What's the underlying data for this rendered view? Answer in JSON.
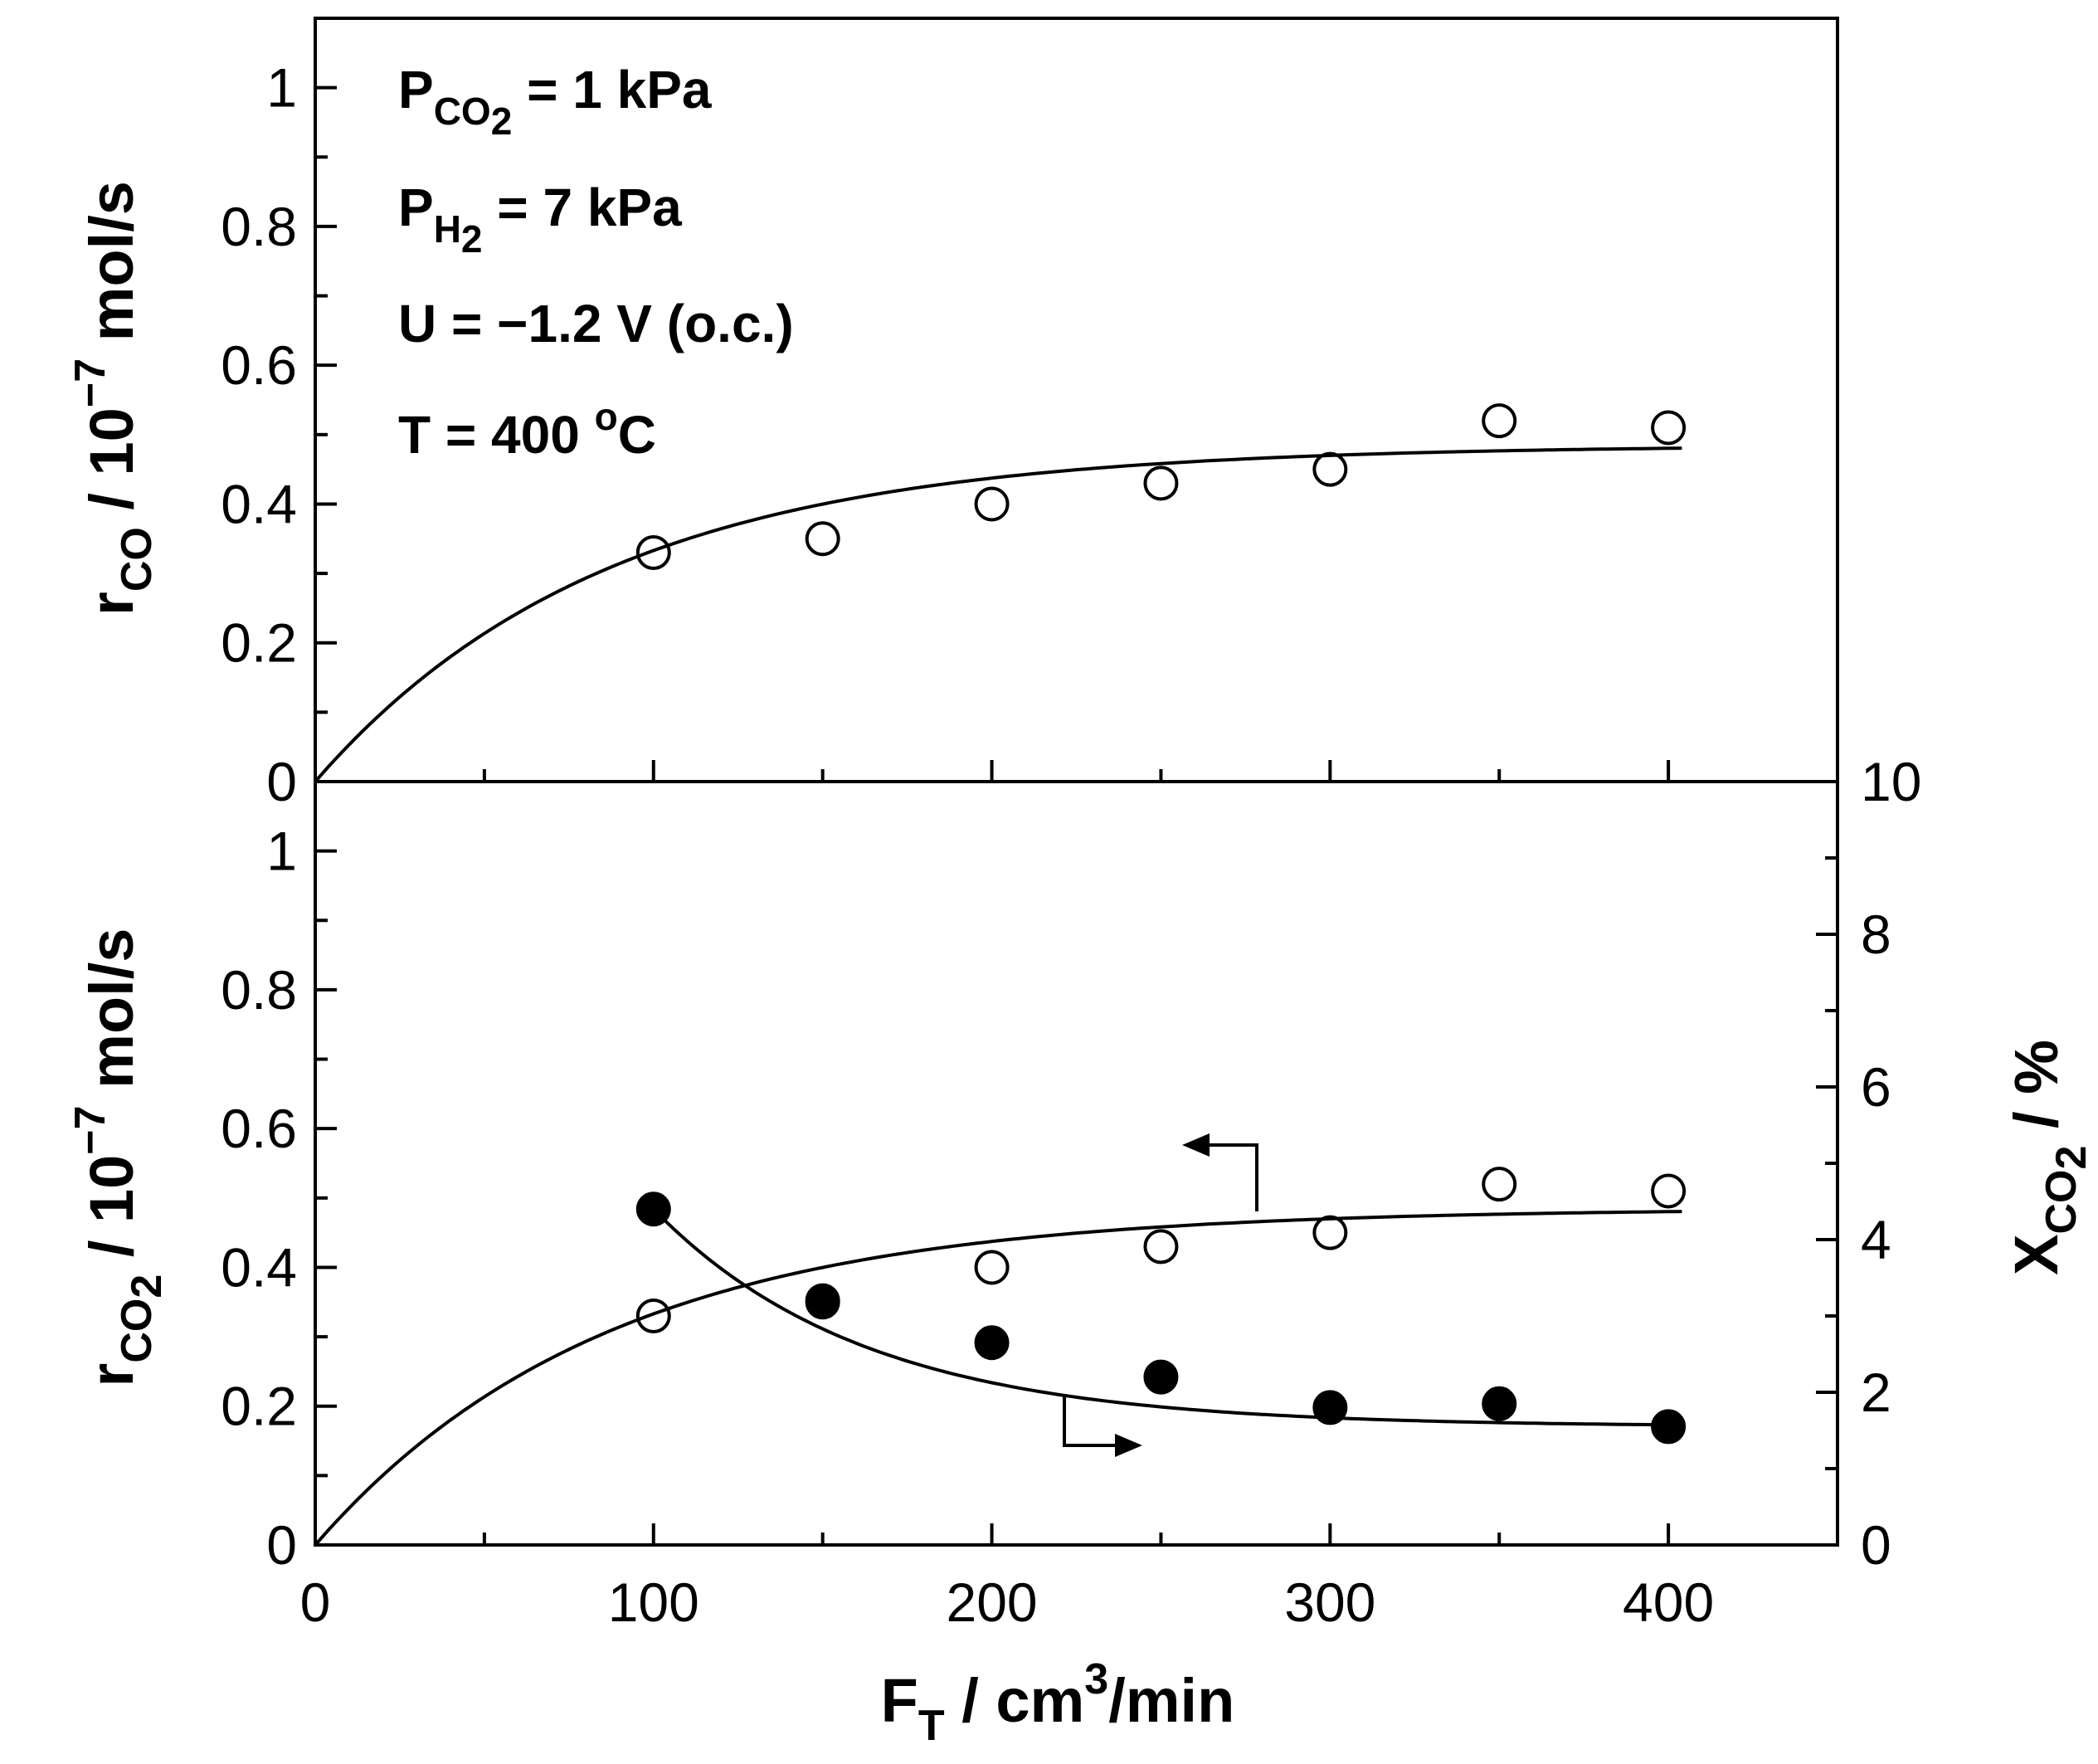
{
  "chart_data": [
    {
      "type": "scatter",
      "panel": "top",
      "x": [
        100,
        150,
        200,
        250,
        300,
        350,
        400
      ],
      "series": [
        {
          "name": "r_CO measured",
          "marker": "open-circle",
          "axis": "left",
          "values": [
            0.33,
            0.35,
            0.4,
            0.43,
            0.45,
            0.52,
            0.51
          ]
        },
        {
          "name": "r_CO fit",
          "style": "line",
          "axis": "left",
          "asymptote": 0.485,
          "rate": 0.0116
        }
      ],
      "xlim": [
        0,
        450
      ],
      "ylim": [
        0,
        1.1
      ],
      "yticks": [
        "0",
        "0.2",
        "0.4",
        "0.6",
        "0.8",
        "1"
      ],
      "ylabel": {
        "main": "r",
        "sub": "CO",
        "rest": " / 10",
        "sup": "−7",
        "tail": " mol/s"
      },
      "annotations": [
        {
          "main": "P",
          "sub": "CO",
          "sub2": "2",
          "rest": " = 1 kPa"
        },
        {
          "main": "P",
          "sub": "H",
          "sub2": "2",
          "rest": " = 7 kPa"
        },
        {
          "main": "U = −1.2 V (o.c.)"
        },
        {
          "main": "T = 400 ",
          "sup": "o",
          "rest": "C"
        }
      ]
    },
    {
      "type": "scatter",
      "panel": "bottom",
      "x": [
        100,
        150,
        200,
        250,
        300,
        350,
        400
      ],
      "series": [
        {
          "name": "r_CO2 measured",
          "marker": "open-circle",
          "axis": "left",
          "values": [
            0.33,
            0.35,
            0.4,
            0.43,
            0.45,
            0.52,
            0.51
          ]
        },
        {
          "name": "r_CO2 fit",
          "style": "line",
          "axis": "left",
          "asymptote": 0.485,
          "rate": 0.0116
        },
        {
          "name": "X_CO2 measured",
          "marker": "filled-circle",
          "axis": "right",
          "values": [
            4.4,
            3.2,
            2.65,
            2.2,
            1.8,
            1.85,
            1.55
          ]
        },
        {
          "name": "X_CO2 fit",
          "style": "line",
          "axis": "right",
          "x_start": 100,
          "start_value": 4.4,
          "asymptote": 1.55,
          "rate": 0.016
        }
      ],
      "xlim": [
        0,
        450
      ],
      "xticks": [
        "0",
        "100",
        "200",
        "300",
        "400"
      ],
      "ylim": [
        0,
        1.1
      ],
      "yticks": [
        "0",
        "0.2",
        "0.4",
        "0.6",
        "0.8",
        "1"
      ],
      "y2lim": [
        0,
        10
      ],
      "y2ticks": [
        "0",
        "2",
        "4",
        "6",
        "8",
        "10"
      ],
      "ylabel": {
        "main": "r",
        "sub": "CO",
        "sub2": "2",
        "rest": " / 10",
        "sup": "−7",
        "tail": " mol/s"
      },
      "y2label": {
        "main": "X",
        "sub": "CO",
        "sub2": "2",
        "rest": " / %"
      },
      "xlabel": {
        "main": "F",
        "sub": "T",
        "rest": " / cm",
        "sup": "3",
        "tail": "/min"
      }
    }
  ]
}
